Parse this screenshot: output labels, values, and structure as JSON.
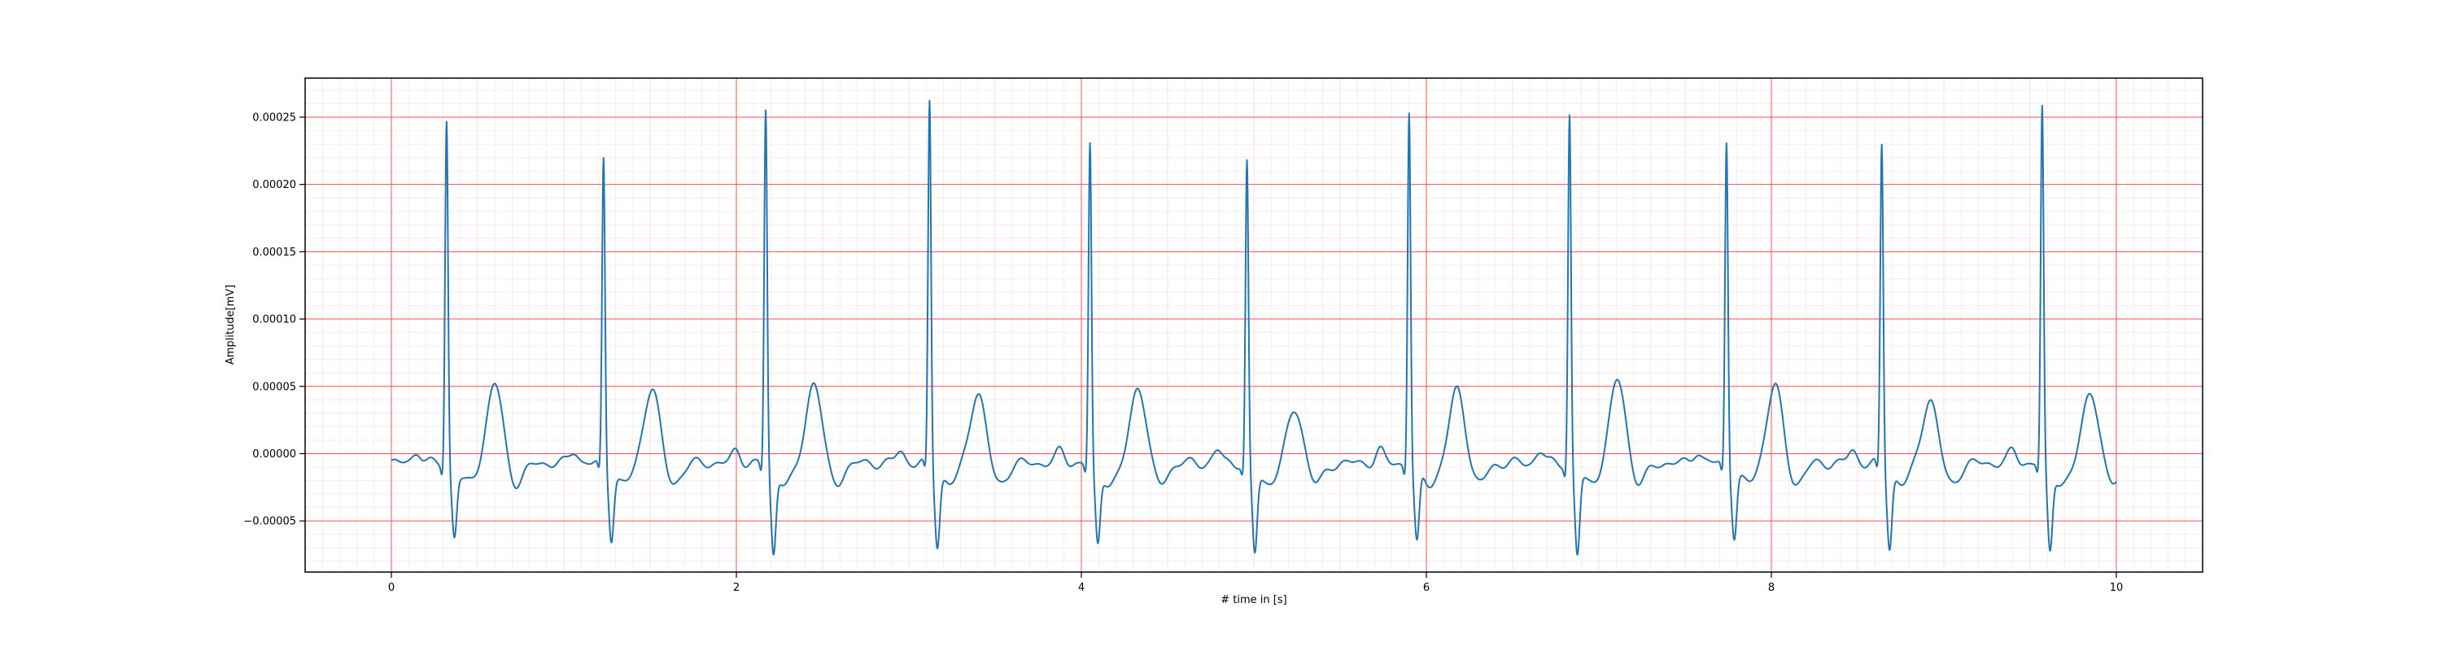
{
  "chart_data": {
    "type": "line",
    "title": "",
    "xlabel": "# time in [s]",
    "ylabel": "Amplitude[mV]",
    "xlim": [
      -0.5,
      10.5
    ],
    "ylim": [
      -8.8e-05,
      0.000279
    ],
    "x_ticks": [
      0,
      2,
      4,
      6,
      8,
      10
    ],
    "x_tick_labels": [
      "0",
      "2",
      "4",
      "6",
      "8",
      "10"
    ],
    "y_ticks": [
      -5e-05,
      0.0,
      5e-05,
      0.0001,
      0.00015,
      0.0002,
      0.00025
    ],
    "y_tick_labels": [
      "−0.00005",
      "0.00000",
      "0.00005",
      "0.00010",
      "0.00015",
      "0.00020",
      "0.00025"
    ],
    "grid": {
      "major": true,
      "major_color": "#ff4d4d",
      "minor": true,
      "minor_color": "#ffc0cb"
    },
    "line_color": "#1f77b4",
    "series": [
      {
        "sampling_rate_hz": 100,
        "duration_s": 10,
        "baseline_mv": -7e-06,
        "beats": [
          {
            "r_time_s": 0.32,
            "r_peak_mv": 0.000249,
            "s_min_mv": -5.6e-05,
            "t_peak_mv": 4.6e-05
          },
          {
            "r_time_s": 1.23,
            "r_peak_mv": 0.000219,
            "s_min_mv": -5.7e-05,
            "t_peak_mv": 4.4e-05
          },
          {
            "r_time_s": 2.17,
            "r_peak_mv": 0.000256,
            "s_min_mv": -7e-05,
            "t_peak_mv": 4.8e-05
          },
          {
            "r_time_s": 3.12,
            "r_peak_mv": 0.000262,
            "s_min_mv": -6.3e-05,
            "t_peak_mv": 4e-05
          },
          {
            "r_time_s": 4.05,
            "r_peak_mv": 0.00023,
            "s_min_mv": -6.3e-05,
            "t_peak_mv": 4.5e-05
          },
          {
            "r_time_s": 4.96,
            "r_peak_mv": 0.000217,
            "s_min_mv": -7e-05,
            "t_peak_mv": 2.7e-05
          },
          {
            "r_time_s": 5.9,
            "r_peak_mv": 0.000256,
            "s_min_mv": -6.3e-05,
            "t_peak_mv": 4.2e-05
          },
          {
            "r_time_s": 6.83,
            "r_peak_mv": 0.000253,
            "s_min_mv": -7.1e-05,
            "t_peak_mv": 4.9e-05
          },
          {
            "r_time_s": 7.74,
            "r_peak_mv": 0.000233,
            "s_min_mv": -5.6e-05,
            "t_peak_mv": 4.5e-05
          },
          {
            "r_time_s": 8.64,
            "r_peak_mv": 0.00023,
            "s_min_mv": -6.5e-05,
            "t_peak_mv": 3.5e-05
          },
          {
            "r_time_s": 9.57,
            "r_peak_mv": 0.000257,
            "s_min_mv": -6.8e-05,
            "t_peak_mv": 4.2e-05
          }
        ]
      }
    ]
  }
}
